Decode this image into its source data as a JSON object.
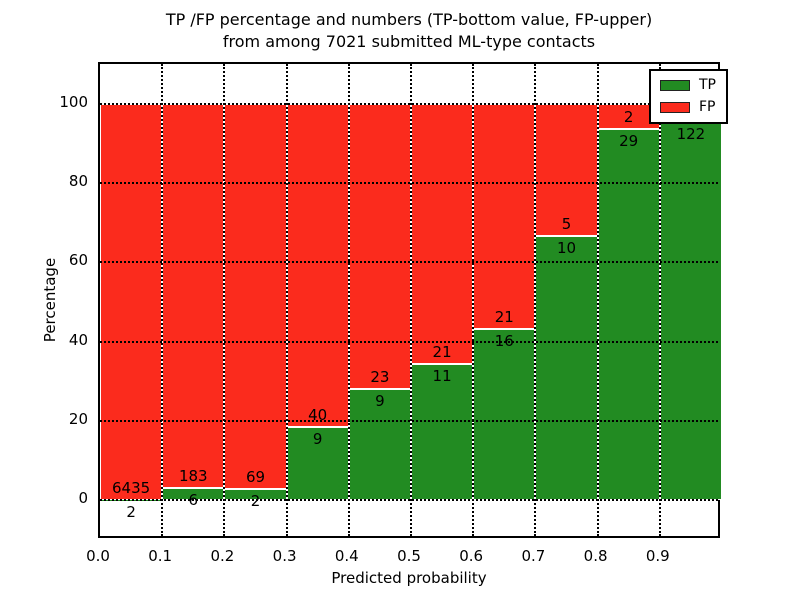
{
  "title": {
    "line1": "TP /FP percentage and numbers (TP-bottom value, FP-upper)",
    "line2": "from among 7021 submitted ML-type contacts"
  },
  "axes": {
    "ylabel": "Percentage",
    "xlabel": "Predicted probability",
    "yticks": [
      0,
      20,
      40,
      60,
      80,
      100
    ],
    "xticks": [
      "0.0",
      "0.1",
      "0.2",
      "0.3",
      "0.4",
      "0.5",
      "0.6",
      "0.7",
      "0.8",
      "0.9"
    ]
  },
  "legend": {
    "entries": [
      {
        "label": "TP",
        "color": "#228b22"
      },
      {
        "label": "FP",
        "color": "#fb2b1d"
      }
    ]
  },
  "chart_data": {
    "type": "bar",
    "stacked": true,
    "title": "TP /FP percentage and numbers (TP-bottom value, FP-upper) from among 7021 submitted ML-type contacts",
    "xlabel": "Predicted probability",
    "ylabel": "Percentage",
    "xlim": [
      0.0,
      1.0
    ],
    "ylim": [
      -10,
      110
    ],
    "grid": "dotted black, drawn above bars",
    "legend_position": "upper right",
    "total_contacts": 7021,
    "series": [
      {
        "name": "TP",
        "color": "#228b22",
        "position": "bottom"
      },
      {
        "name": "FP",
        "color": "#fb2b1d",
        "position": "top"
      }
    ],
    "bins": [
      {
        "x0": 0.0,
        "x1": 0.1,
        "tp": 2,
        "fp": 6435,
        "tp_label": "2",
        "fp_label": "6435",
        "tp_pct": 0.03,
        "fp_pct": 99.97
      },
      {
        "x0": 0.1,
        "x1": 0.2,
        "tp": 6,
        "fp": 183,
        "tp_label": "6",
        "fp_label": "183",
        "tp_pct": 3.17,
        "fp_pct": 96.83
      },
      {
        "x0": 0.2,
        "x1": 0.3,
        "tp": 2,
        "fp": 69,
        "tp_label": "2",
        "fp_label": "69",
        "tp_pct": 2.82,
        "fp_pct": 97.18
      },
      {
        "x0": 0.3,
        "x1": 0.4,
        "tp": 9,
        "fp": 40,
        "tp_label": "9",
        "fp_label": "40",
        "tp_pct": 18.37,
        "fp_pct": 81.63
      },
      {
        "x0": 0.4,
        "x1": 0.5,
        "tp": 9,
        "fp": 23,
        "tp_label": "9",
        "fp_label": "23",
        "tp_pct": 28.13,
        "fp_pct": 71.87
      },
      {
        "x0": 0.5,
        "x1": 0.6,
        "tp": 11,
        "fp": 21,
        "tp_label": "11",
        "fp_label": "21",
        "tp_pct": 34.38,
        "fp_pct": 65.62
      },
      {
        "x0": 0.6,
        "x1": 0.7,
        "tp": 16,
        "fp": 21,
        "tp_label": "16",
        "fp_label": "21",
        "tp_pct": 43.24,
        "fp_pct": 56.76
      },
      {
        "x0": 0.7,
        "x1": 0.8,
        "tp": 10,
        "fp": 5,
        "tp_label": "10",
        "fp_label": "5",
        "tp_pct": 66.67,
        "fp_pct": 33.33
      },
      {
        "x0": 0.8,
        "x1": 0.9,
        "tp": 29,
        "fp": 2,
        "tp_label": "29",
        "fp_label": "2",
        "tp_pct": 93.55,
        "fp_pct": 6.45
      },
      {
        "x0": 0.9,
        "x1": 1.0,
        "tp": 122,
        "fp": null,
        "tp_label": "122",
        "fp_label": "",
        "tp_pct": 95.31,
        "fp_pct": 4.69,
        "fp_label_hidden_by_legend": true
      }
    ]
  }
}
